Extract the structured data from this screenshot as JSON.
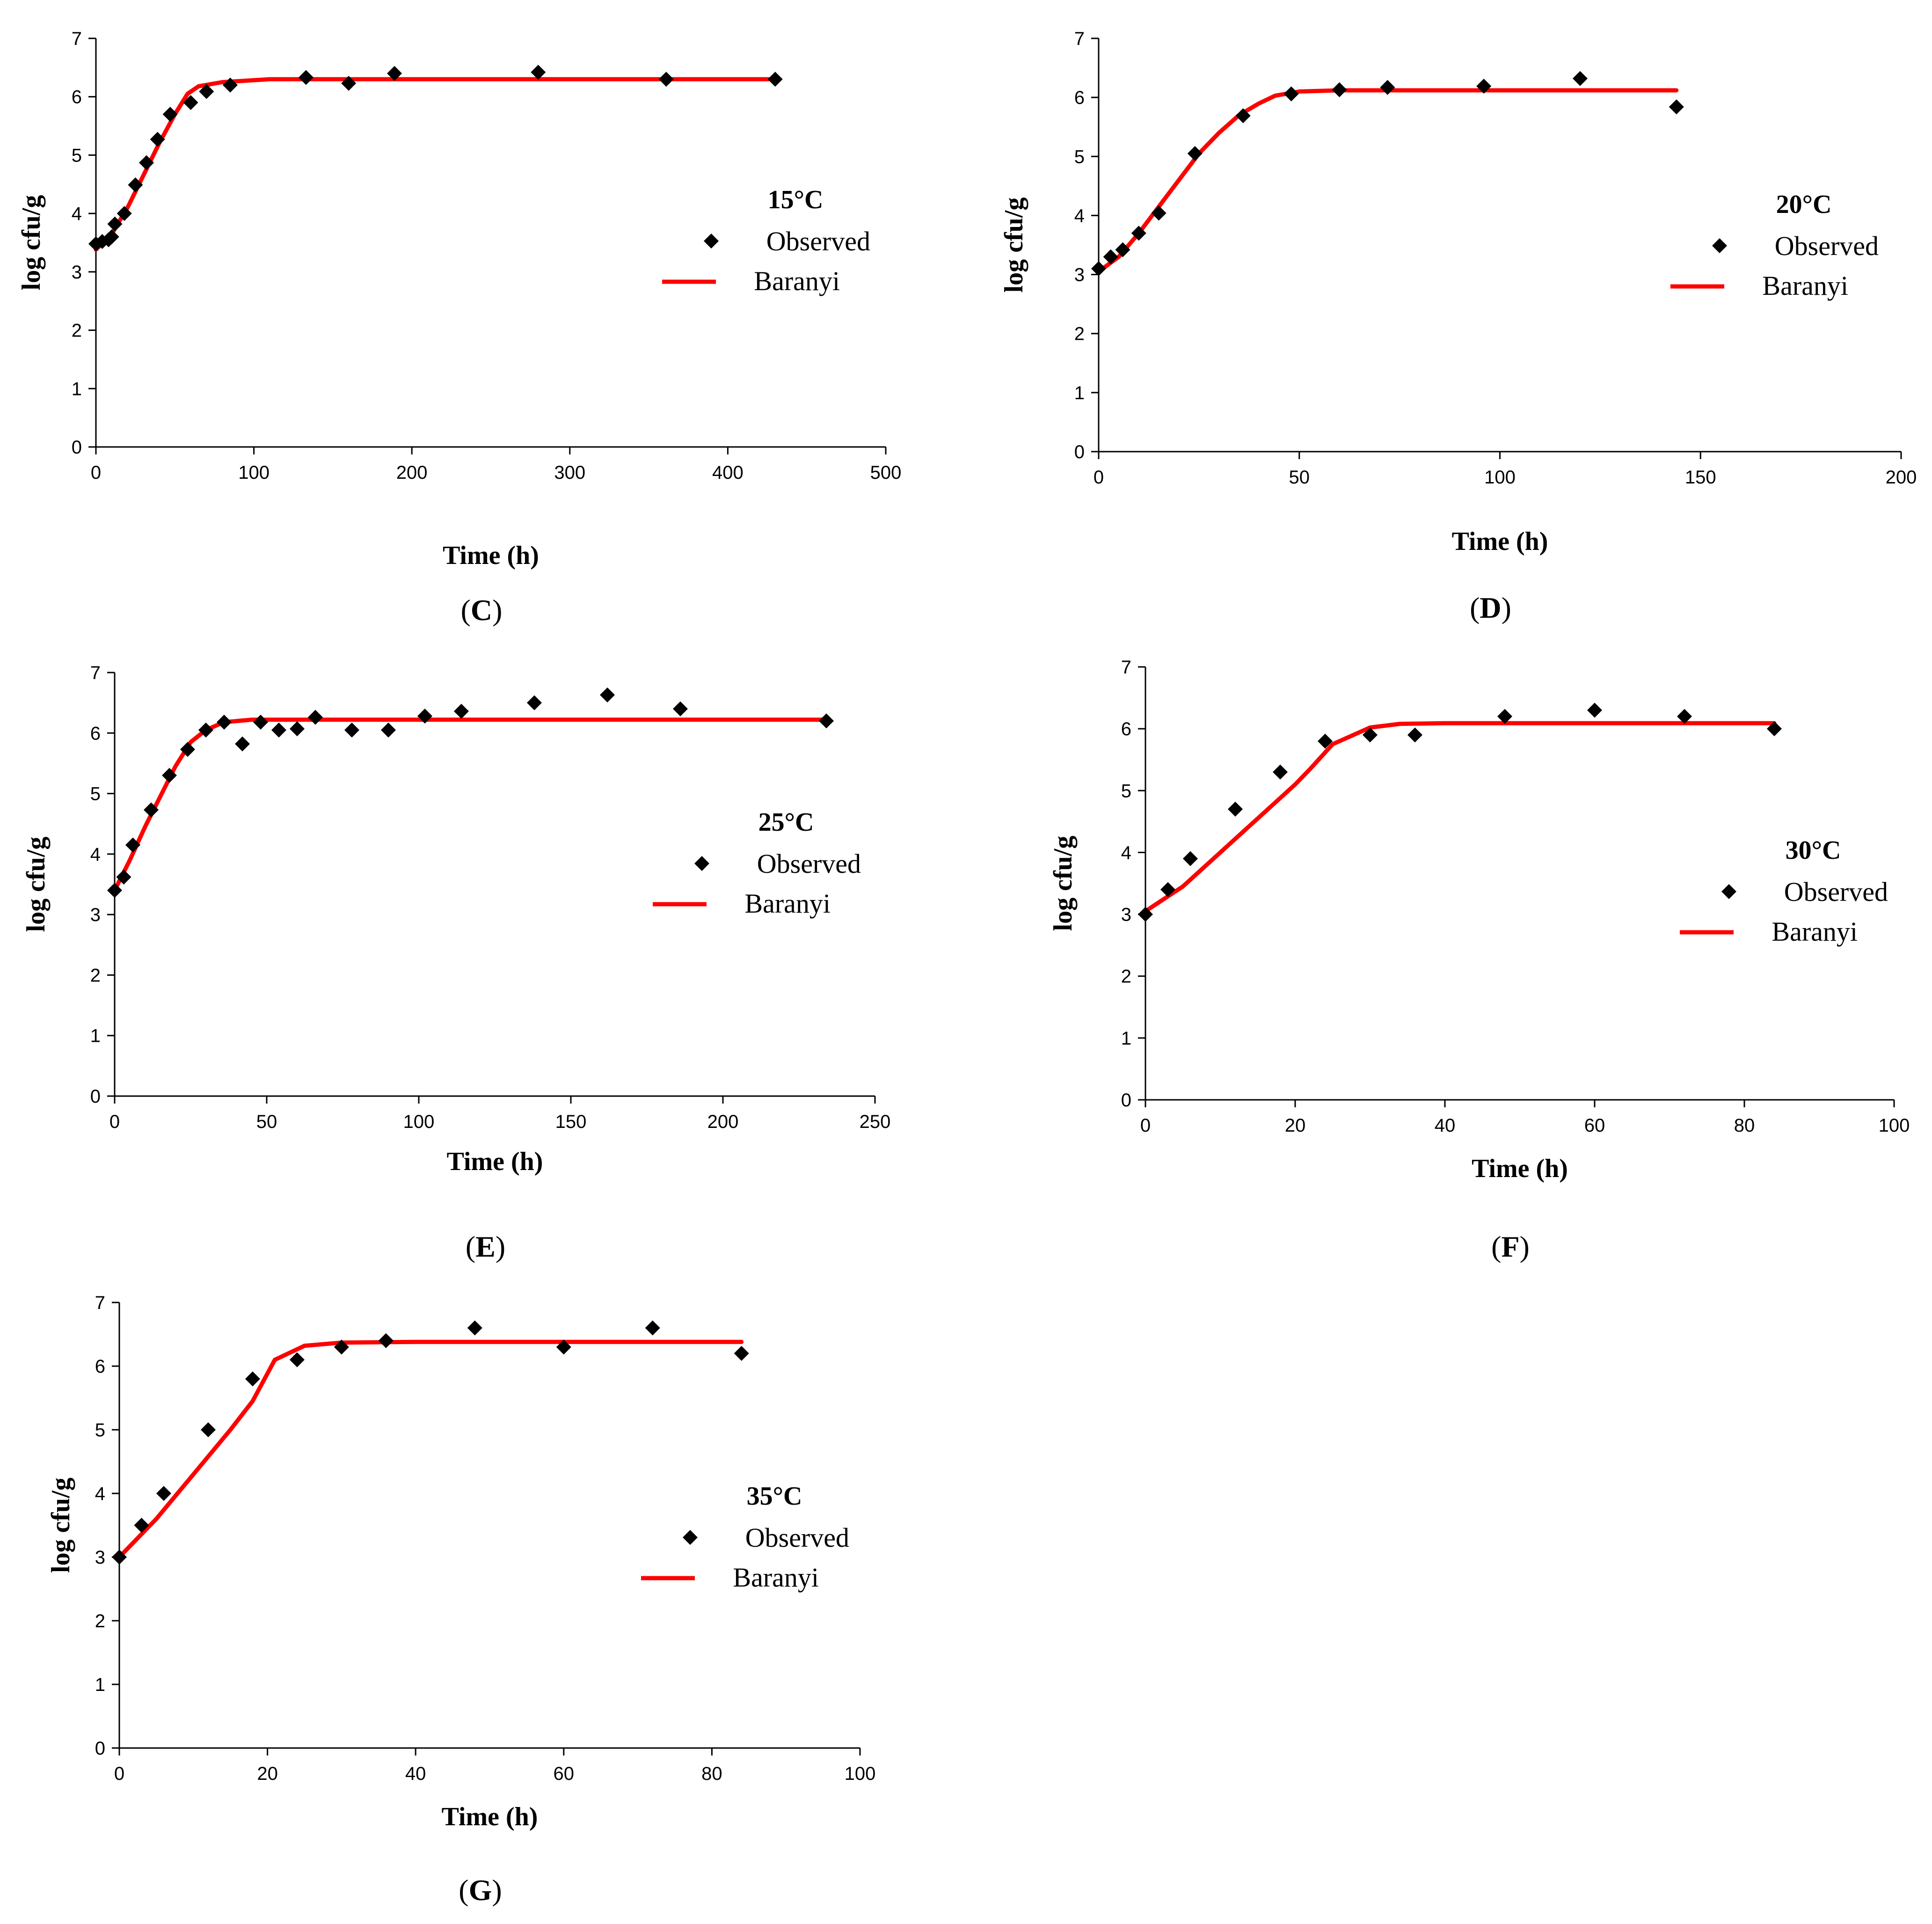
{
  "colors": {
    "baranyi": "#ff0000",
    "observed": "#000000",
    "axis": "#000000"
  },
  "chart_data": [
    {
      "type": "scatter",
      "panel_label": "C",
      "title": "15°C",
      "xlabel": "Time (h)",
      "ylabel": "log cfu/g",
      "xlim": [
        0,
        500
      ],
      "ylim": [
        0,
        7
      ],
      "xticks": [
        0,
        100,
        200,
        300,
        400,
        500
      ],
      "yticks": [
        0,
        1,
        2,
        3,
        4,
        5,
        6,
        7
      ],
      "legend": {
        "observed": "Observed",
        "fitted": "Baranyi",
        "placement": "right-middle"
      },
      "observed": [
        [
          0,
          3.48
        ],
        [
          4,
          3.52
        ],
        [
          8,
          3.55
        ],
        [
          10,
          3.6
        ],
        [
          12,
          3.82
        ],
        [
          18,
          4.0
        ],
        [
          25,
          4.49
        ],
        [
          32,
          4.87
        ],
        [
          39,
          5.27
        ],
        [
          47,
          5.7
        ],
        [
          60,
          5.9
        ],
        [
          70,
          6.09
        ],
        [
          85,
          6.2
        ],
        [
          133,
          6.33
        ],
        [
          160,
          6.23
        ],
        [
          189,
          6.4
        ],
        [
          280,
          6.42
        ],
        [
          361,
          6.3
        ],
        [
          430,
          6.3
        ]
      ],
      "baranyi": [
        [
          0,
          3.38
        ],
        [
          10,
          3.65
        ],
        [
          20,
          4.1
        ],
        [
          30,
          4.65
        ],
        [
          40,
          5.2
        ],
        [
          50,
          5.7
        ],
        [
          58,
          6.05
        ],
        [
          65,
          6.18
        ],
        [
          80,
          6.25
        ],
        [
          110,
          6.3
        ],
        [
          200,
          6.3
        ],
        [
          300,
          6.3
        ],
        [
          430,
          6.3
        ]
      ]
    },
    {
      "type": "scatter",
      "panel_label": "D",
      "title": "20°C",
      "xlabel": "Time (h)",
      "ylabel": "log cfu/g",
      "xlim": [
        0,
        200
      ],
      "ylim": [
        0,
        7
      ],
      "xticks": [
        0,
        50,
        100,
        150,
        200
      ],
      "yticks": [
        0,
        1,
        2,
        3,
        4,
        5,
        6,
        7
      ],
      "legend": {
        "observed": "Observed",
        "fitted": "Baranyi",
        "placement": "right-middle"
      },
      "observed": [
        [
          0,
          3.1
        ],
        [
          3,
          3.3
        ],
        [
          6,
          3.42
        ],
        [
          10,
          3.7
        ],
        [
          15,
          4.04
        ],
        [
          24,
          5.05
        ],
        [
          36,
          5.69
        ],
        [
          48,
          6.06
        ],
        [
          60,
          6.13
        ],
        [
          72,
          6.17
        ],
        [
          96,
          6.19
        ],
        [
          120,
          6.32
        ],
        [
          144,
          5.84
        ]
      ],
      "baranyi": [
        [
          0,
          3.05
        ],
        [
          5,
          3.3
        ],
        [
          10,
          3.7
        ],
        [
          15,
          4.15
        ],
        [
          20,
          4.6
        ],
        [
          25,
          5.05
        ],
        [
          30,
          5.4
        ],
        [
          35,
          5.7
        ],
        [
          40,
          5.9
        ],
        [
          44,
          6.03
        ],
        [
          50,
          6.1
        ],
        [
          60,
          6.12
        ],
        [
          100,
          6.12
        ],
        [
          144,
          6.12
        ]
      ]
    },
    {
      "type": "scatter",
      "panel_label": "E",
      "title": "25°C",
      "xlabel": "Time (h)",
      "ylabel": "log cfu/g",
      "xlim": [
        0,
        250
      ],
      "ylim": [
        0,
        7
      ],
      "xticks": [
        0,
        50,
        100,
        150,
        200,
        250
      ],
      "yticks": [
        0,
        1,
        2,
        3,
        4,
        5,
        6,
        7
      ],
      "legend": {
        "observed": "Observed",
        "fitted": "Baranyi",
        "placement": "right-middle"
      },
      "observed": [
        [
          0,
          3.4
        ],
        [
          3,
          3.62
        ],
        [
          6,
          4.15
        ],
        [
          12,
          4.73
        ],
        [
          18,
          5.3
        ],
        [
          24,
          5.73
        ],
        [
          30,
          6.05
        ],
        [
          36,
          6.18
        ],
        [
          42,
          5.82
        ],
        [
          48,
          6.18
        ],
        [
          54,
          6.05
        ],
        [
          60,
          6.07
        ],
        [
          66,
          6.26
        ],
        [
          78,
          6.05
        ],
        [
          90,
          6.05
        ],
        [
          102,
          6.28
        ],
        [
          114,
          6.36
        ],
        [
          138,
          6.5
        ],
        [
          162,
          6.63
        ],
        [
          186,
          6.4
        ],
        [
          234,
          6.2
        ]
      ],
      "baranyi": [
        [
          0,
          3.4
        ],
        [
          5,
          3.9
        ],
        [
          10,
          4.45
        ],
        [
          15,
          4.95
        ],
        [
          20,
          5.45
        ],
        [
          25,
          5.85
        ],
        [
          30,
          6.05
        ],
        [
          36,
          6.18
        ],
        [
          45,
          6.22
        ],
        [
          60,
          6.22
        ],
        [
          100,
          6.22
        ],
        [
          234,
          6.22
        ]
      ]
    },
    {
      "type": "scatter",
      "panel_label": "F",
      "title": "30°C",
      "xlabel": "Time (h)",
      "ylabel": "log cfu/g",
      "xlim": [
        0,
        100
      ],
      "ylim": [
        0,
        7
      ],
      "xticks": [
        0,
        20,
        40,
        60,
        80,
        100
      ],
      "yticks": [
        0,
        1,
        2,
        3,
        4,
        5,
        6,
        7
      ],
      "legend": {
        "observed": "Observed",
        "fitted": "Baranyi",
        "placement": "right-middle"
      },
      "observed": [
        [
          0,
          3.0
        ],
        [
          3,
          3.4
        ],
        [
          6,
          3.9
        ],
        [
          12,
          4.7
        ],
        [
          18,
          5.3
        ],
        [
          24,
          5.8
        ],
        [
          30,
          5.9
        ],
        [
          36,
          5.9
        ],
        [
          48,
          6.2
        ],
        [
          60,
          6.3
        ],
        [
          72,
          6.2
        ],
        [
          84,
          6.0
        ]
      ],
      "baranyi": [
        [
          0,
          3.05
        ],
        [
          5,
          3.45
        ],
        [
          10,
          4.0
        ],
        [
          15,
          4.55
        ],
        [
          20,
          5.1
        ],
        [
          22,
          5.35
        ],
        [
          25,
          5.75
        ],
        [
          30,
          6.02
        ],
        [
          34,
          6.08
        ],
        [
          40,
          6.09
        ],
        [
          60,
          6.09
        ],
        [
          84,
          6.09
        ]
      ]
    },
    {
      "type": "scatter",
      "panel_label": "G",
      "title": "35°C",
      "xlabel": "Time (h)",
      "ylabel": "log cfu/g",
      "xlim": [
        0,
        100
      ],
      "ylim": [
        0,
        7
      ],
      "xticks": [
        0,
        20,
        40,
        60,
        80,
        100
      ],
      "yticks": [
        0,
        1,
        2,
        3,
        4,
        5,
        6,
        7
      ],
      "legend": {
        "observed": "Observed",
        "fitted": "Baranyi",
        "placement": "right-middle"
      },
      "observed": [
        [
          0,
          3.0
        ],
        [
          3,
          3.5
        ],
        [
          6,
          4.0
        ],
        [
          12,
          5.0
        ],
        [
          18,
          5.8
        ],
        [
          24,
          6.1
        ],
        [
          30,
          6.3
        ],
        [
          36,
          6.4
        ],
        [
          48,
          6.6
        ],
        [
          60,
          6.3
        ],
        [
          72,
          6.6
        ],
        [
          84,
          6.2
        ]
      ],
      "baranyi": [
        [
          0,
          3.0
        ],
        [
          5,
          3.6
        ],
        [
          10,
          4.3
        ],
        [
          15,
          5.0
        ],
        [
          18,
          5.45
        ],
        [
          21,
          6.1
        ],
        [
          25,
          6.32
        ],
        [
          30,
          6.37
        ],
        [
          40,
          6.38
        ],
        [
          60,
          6.38
        ],
        [
          84,
          6.38
        ]
      ]
    }
  ]
}
